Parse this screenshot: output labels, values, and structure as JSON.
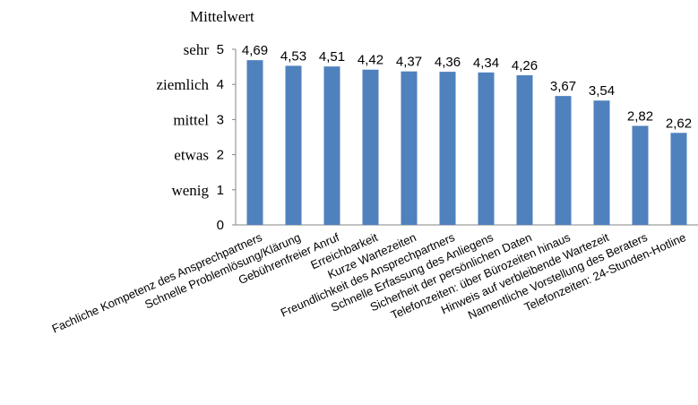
{
  "chart_data": {
    "type": "bar",
    "ylabel": "Mittelwert",
    "ylim": [
      0,
      5
    ],
    "yticks": [
      0,
      1,
      2,
      3,
      4,
      5
    ],
    "scale_words": [
      {
        "value": 5,
        "label": "sehr"
      },
      {
        "value": 4,
        "label": "ziemlich"
      },
      {
        "value": 3,
        "label": "mittel"
      },
      {
        "value": 2,
        "label": "etwas"
      },
      {
        "value": 1,
        "label": "wenig"
      }
    ],
    "grid": false,
    "categories": [
      "Fachliche Kompetenz des Ansprechpartners",
      "Schnelle Problemlösung/Klärung",
      "Gebührenfreier Anruf",
      "Erreichbarkeit",
      "Kurze Wartezeiten",
      "Freundlichkeit des Ansprechpartners",
      "Schnelle Erfassung des Anliegens",
      "Sicherheit der persönlichen Daten",
      "Telefonzeiten: über Bürozeiten hinaus",
      "Hinweis auf verbleibende Wartezeit",
      "Namentliche Vorstellung des Beraters",
      "Telefonzeiten: 24-Stunden-Hotline"
    ],
    "values": [
      4.69,
      4.53,
      4.51,
      4.42,
      4.37,
      4.36,
      4.34,
      4.26,
      3.67,
      3.54,
      2.82,
      2.62
    ],
    "value_labels": [
      "4,69",
      "4,53",
      "4,51",
      "4,42",
      "4,37",
      "4,36",
      "4,34",
      "4,26",
      "3,67",
      "3,54",
      "2,82",
      "2,62"
    ],
    "colors": {
      "bar": "#4f81bd",
      "axis": "#868686"
    }
  }
}
